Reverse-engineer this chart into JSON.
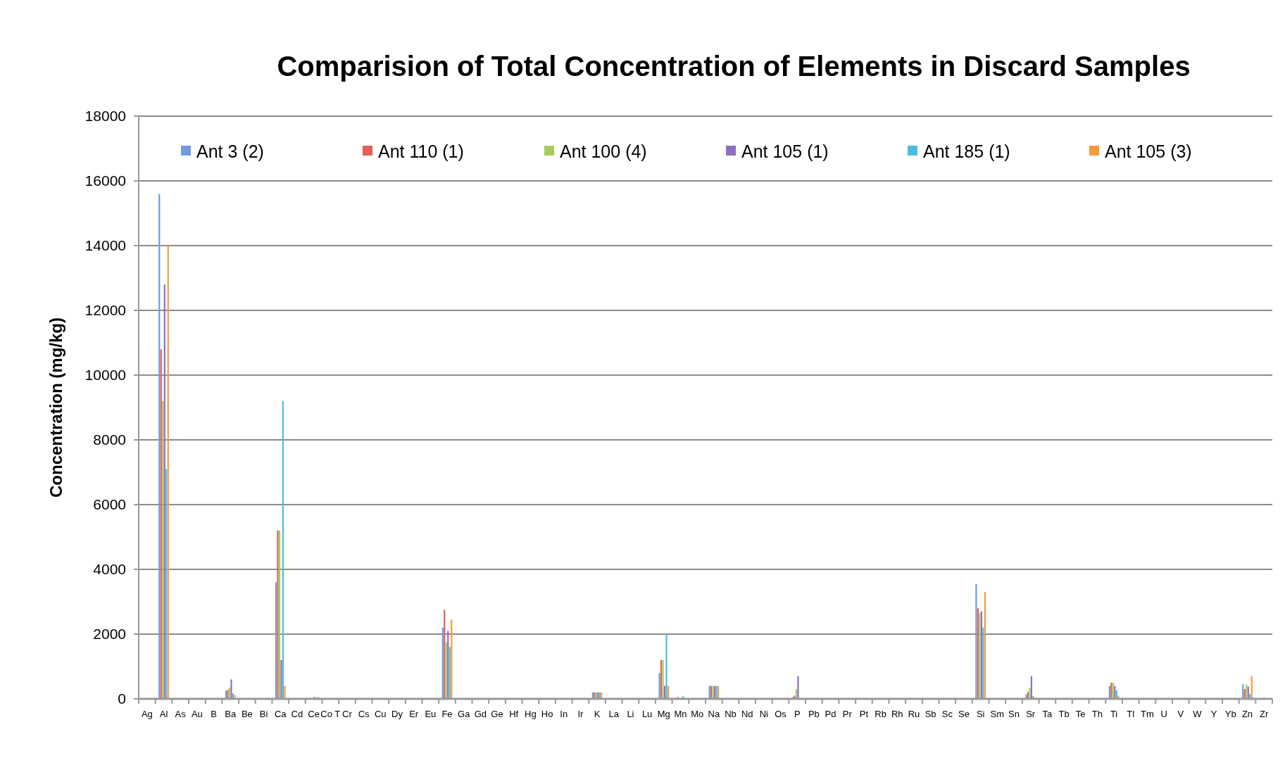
{
  "chart_data": {
    "type": "bar",
    "title": "Comparision of Total Concentration of Elements in Discard Samples",
    "ylabel": "Concentration (mg/kg)",
    "categories": [
      "Ag",
      "Al",
      "As",
      "Au",
      "B",
      "Ba",
      "Be",
      "Bi",
      "Ca",
      "Cd",
      "Ce",
      "Co T",
      "Cr",
      "Cs",
      "Cu",
      "Dy",
      "Er",
      "Eu",
      "Fe",
      "Ga",
      "Gd",
      "Ge",
      "Hf",
      "Hg",
      "Ho",
      "In",
      "Ir",
      "K",
      "La",
      "Li",
      "Lu",
      "Mg",
      "Mn",
      "Mo",
      "Na",
      "Nb",
      "Nd",
      "Ni",
      "Os",
      "P",
      "Pb",
      "Pd",
      "Pr",
      "Pt",
      "Rb",
      "Rh",
      "Ru",
      "Sb",
      "Sc",
      "Se",
      "Si",
      "Sm",
      "Sn",
      "Sr",
      "Ta",
      "Tb",
      "Te",
      "Th",
      "Ti",
      "Tl",
      "Tm",
      "U",
      "V",
      "W",
      "Y",
      "Yb",
      "Zn",
      "Zr"
    ],
    "series": [
      {
        "name": "Ant 3 (2)",
        "color": "#6f9be0",
        "values": [
          20,
          15600,
          20,
          20,
          20,
          250,
          20,
          20,
          3600,
          20,
          20,
          20,
          20,
          20,
          20,
          20,
          20,
          20,
          2200,
          20,
          20,
          20,
          20,
          20,
          20,
          20,
          20,
          200,
          20,
          20,
          20,
          800,
          20,
          20,
          400,
          20,
          20,
          20,
          20,
          60,
          20,
          20,
          20,
          20,
          20,
          20,
          20,
          20,
          20,
          20,
          3550,
          20,
          20,
          140,
          20,
          20,
          20,
          20,
          400,
          20,
          20,
          20,
          20,
          20,
          20,
          20,
          450,
          20
        ]
      },
      {
        "name": "Ant 110 (1)",
        "color": "#e0605a",
        "values": [
          20,
          10800,
          20,
          20,
          20,
          280,
          20,
          20,
          5200,
          20,
          20,
          20,
          20,
          20,
          20,
          20,
          20,
          20,
          2750,
          20,
          20,
          20,
          20,
          20,
          20,
          20,
          20,
          200,
          20,
          20,
          20,
          1200,
          60,
          20,
          400,
          20,
          20,
          20,
          20,
          100,
          20,
          20,
          20,
          20,
          20,
          20,
          20,
          20,
          20,
          20,
          2800,
          20,
          20,
          210,
          20,
          20,
          20,
          20,
          500,
          20,
          20,
          20,
          20,
          20,
          20,
          20,
          300,
          20
        ]
      },
      {
        "name": "Ant 100 (4)",
        "color": "#a8cc5a",
        "values": [
          20,
          9200,
          20,
          20,
          20,
          350,
          20,
          20,
          5200,
          20,
          20,
          20,
          20,
          20,
          20,
          20,
          20,
          20,
          1750,
          20,
          20,
          20,
          20,
          20,
          20,
          20,
          20,
          200,
          20,
          20,
          20,
          1200,
          20,
          20,
          400,
          20,
          20,
          20,
          20,
          300,
          20,
          20,
          20,
          20,
          20,
          20,
          20,
          20,
          20,
          20,
          2650,
          20,
          20,
          340,
          20,
          20,
          20,
          20,
          500,
          20,
          20,
          20,
          20,
          20,
          20,
          20,
          450,
          20
        ]
      },
      {
        "name": "Ant 105 (1)",
        "color": "#8c6fbf",
        "values": [
          20,
          12800,
          20,
          20,
          20,
          600,
          20,
          20,
          1200,
          20,
          60,
          20,
          20,
          20,
          20,
          20,
          20,
          20,
          2100,
          20,
          20,
          20,
          20,
          20,
          20,
          20,
          20,
          200,
          20,
          20,
          20,
          400,
          20,
          20,
          400,
          20,
          20,
          20,
          20,
          700,
          20,
          20,
          20,
          20,
          20,
          20,
          20,
          20,
          20,
          20,
          2700,
          20,
          20,
          700,
          20,
          20,
          20,
          20,
          400,
          20,
          20,
          20,
          20,
          20,
          20,
          20,
          380,
          20
        ]
      },
      {
        "name": "Ant 185 (1)",
        "color": "#4bbde0",
        "values": [
          20,
          7100,
          20,
          20,
          20,
          170,
          20,
          20,
          9200,
          20,
          20,
          20,
          20,
          20,
          20,
          20,
          20,
          20,
          1600,
          20,
          20,
          20,
          20,
          20,
          20,
          20,
          20,
          200,
          20,
          20,
          20,
          2000,
          80,
          20,
          400,
          20,
          20,
          20,
          20,
          20,
          20,
          20,
          20,
          20,
          20,
          20,
          20,
          20,
          20,
          20,
          2200,
          20,
          20,
          80,
          20,
          20,
          20,
          20,
          270,
          20,
          20,
          20,
          20,
          20,
          20,
          20,
          150,
          20
        ]
      },
      {
        "name": "Ant 105 (3)",
        "color": "#f79a3c",
        "values": [
          20,
          14000,
          20,
          20,
          20,
          120,
          20,
          20,
          400,
          20,
          60,
          20,
          20,
          20,
          20,
          20,
          20,
          20,
          2450,
          20,
          20,
          20,
          20,
          20,
          20,
          20,
          20,
          200,
          20,
          20,
          20,
          400,
          20,
          20,
          400,
          20,
          20,
          20,
          20,
          20,
          20,
          20,
          20,
          20,
          20,
          20,
          20,
          20,
          20,
          20,
          3300,
          20,
          20,
          20,
          20,
          20,
          20,
          20,
          100,
          20,
          20,
          20,
          20,
          20,
          20,
          20,
          700,
          20
        ]
      }
    ],
    "ylim": [
      0,
      18000
    ],
    "yticks": [
      0,
      2000,
      4000,
      6000,
      8000,
      10000,
      12000,
      14000,
      16000,
      18000
    ],
    "grid": "y",
    "legend": "top"
  }
}
